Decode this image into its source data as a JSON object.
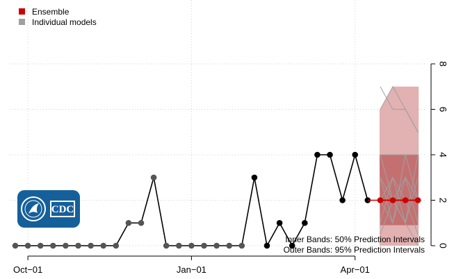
{
  "legend": {
    "items": [
      {
        "label": "Ensemble",
        "color": "#cc0000"
      },
      {
        "label": "Individual models",
        "color": "#a0a0a0"
      }
    ]
  },
  "annotation": {
    "line1": "Inner Bands: 50% Prediction Intervals",
    "line2": "Outer Bands: 95% Prediction Intervals"
  },
  "logo": {
    "text": "CDC"
  },
  "colors": {
    "observed": "#000000",
    "observed_early": "#555555",
    "ensemble": "#cc0000",
    "band_outer": "#e2b1b1",
    "band_inner": "#c47070",
    "individual": "#a0a0a0",
    "grid": "#d0d0d0",
    "logo_bg": "#15609b"
  },
  "chart_data": {
    "type": "line",
    "x_ticks": [
      "Oct−01",
      "Jan−01",
      "Apr−01"
    ],
    "x_tick_weeks": [
      1,
      14,
      27
    ],
    "ylim": [
      0,
      8
    ],
    "y_ticks": [
      "0",
      "2",
      "4",
      "6",
      "8"
    ],
    "grid": true,
    "legend_position": "top-left",
    "observed": {
      "weeks": [
        0,
        1,
        2,
        3,
        4,
        5,
        6,
        7,
        8,
        9,
        10,
        11,
        12,
        13,
        14,
        15,
        16,
        17,
        18,
        19,
        20,
        21,
        22,
        23,
        24,
        25,
        26,
        27,
        28
      ],
      "values": [
        0,
        0,
        0,
        0,
        0,
        0,
        0,
        0,
        0,
        1,
        1,
        3,
        0,
        0,
        0,
        0,
        0,
        0,
        0,
        3,
        0,
        1,
        0,
        1,
        4,
        4,
        2,
        4,
        2
      ],
      "gray_until_week": 18
    },
    "ensemble": {
      "weeks": [
        29,
        30,
        31,
        32
      ],
      "values": [
        2,
        2,
        2,
        2
      ],
      "pi50": [
        [
          0.9,
          4
        ],
        [
          0.9,
          4
        ],
        [
          0.9,
          4
        ],
        [
          0.9,
          4
        ]
      ],
      "pi95": [
        [
          0,
          6
        ],
        [
          0,
          7
        ],
        [
          0,
          7
        ],
        [
          0,
          7
        ]
      ]
    },
    "individual_models": [
      [
        7,
        6,
        6,
        5
      ],
      [
        6,
        7,
        6,
        5
      ],
      [
        4,
        4,
        4,
        4
      ],
      [
        3,
        2,
        3,
        2
      ],
      [
        2,
        3,
        1,
        4
      ],
      [
        1,
        3,
        2,
        0.5
      ],
      [
        3,
        1,
        3,
        1
      ],
      [
        0.5,
        2,
        1,
        3
      ],
      [
        2,
        1,
        4,
        2
      ],
      [
        4,
        2,
        1,
        0
      ]
    ]
  }
}
